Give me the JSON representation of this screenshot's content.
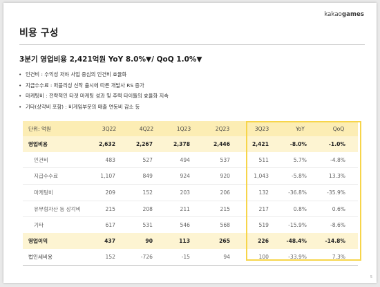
{
  "header": {
    "logo_prefix": "kakao",
    "logo_suffix": "games"
  },
  "title": "비용 구성",
  "headline": "3분기 영업비용 2,421억원 YoY 8.0%▼/ QoQ 1.0%▼",
  "bullets": [
    "인건비 : 수익성 저하 사업 중심의 인건비 효율화",
    "지급수수료 : 퍼블리싱 신작 출시에 따른 개발사 RS 증가",
    "마케팅비 : 전략적인 타겟 마케팅 성과 및 주력 타이틀의 효율화 지속",
    "기타(상각비 포함) : 비게임부문의 매출 연동비 감소 등"
  ],
  "table": {
    "unit_label": "단위: 억원",
    "columns": [
      "3Q22",
      "4Q22",
      "1Q23",
      "2Q23",
      "3Q23",
      "YoY",
      "QoQ"
    ],
    "rows": [
      {
        "label": "영업비용",
        "cells": [
          "2,632",
          "2,267",
          "2,378",
          "2,446",
          "2,421",
          "-8.0%",
          "-1.0%"
        ]
      },
      {
        "label": "인건비",
        "cells": [
          "483",
          "527",
          "494",
          "537",
          "511",
          "5.7%",
          "-4.8%"
        ]
      },
      {
        "label": "지급수수료",
        "cells": [
          "1,107",
          "849",
          "924",
          "920",
          "1,043",
          "-5.8%",
          "13.3%"
        ]
      },
      {
        "label": "마케팅비",
        "cells": [
          "209",
          "152",
          "203",
          "206",
          "132",
          "-36.8%",
          "-35.9%"
        ]
      },
      {
        "label": "유무형자산 등 상각비",
        "cells": [
          "215",
          "208",
          "211",
          "215",
          "217",
          "0.8%",
          "0.6%"
        ]
      },
      {
        "label": "기타",
        "cells": [
          "617",
          "531",
          "546",
          "568",
          "519",
          "-15.9%",
          "-8.6%"
        ]
      },
      {
        "label": "영업이익",
        "cells": [
          "437",
          "90",
          "113",
          "265",
          "226",
          "-48.4%",
          "-14.8%"
        ]
      },
      {
        "label": "법인세비용",
        "cells": [
          "152",
          "-726",
          "-15",
          "94",
          "100",
          "-33.9%",
          "7.3%"
        ]
      }
    ]
  },
  "page_number": "5",
  "colors": {
    "highlight_border": "#f7d54a",
    "header_fill": "#fcedb4",
    "bold_row_fill": "#fdf4d2"
  }
}
